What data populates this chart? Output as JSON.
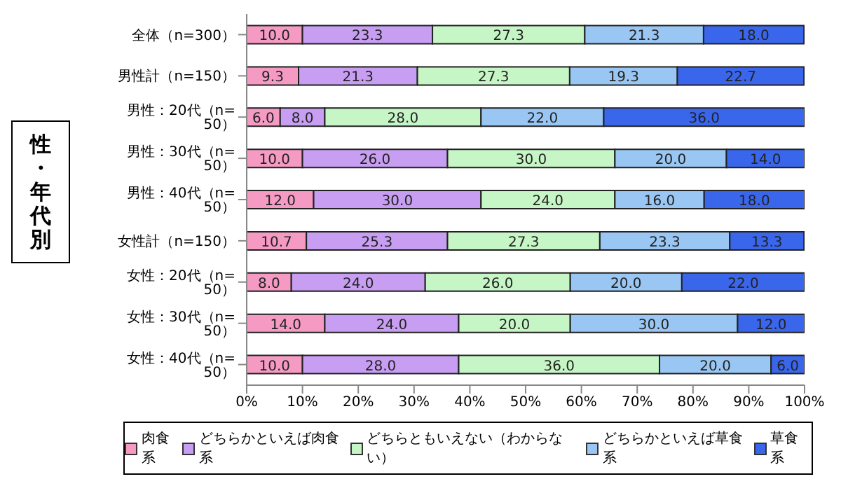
{
  "chart_data": {
    "type": "bar",
    "orientation": "horizontal",
    "stacked": true,
    "ylabel": "性・年代別",
    "categories": [
      "全体（n=300）",
      "男性計（n=150）",
      "男性：20代（n=  50）",
      "男性：30代（n=  50）",
      "男性：40代（n=  50）",
      "女性計（n=150）",
      "女性：20代（n=  50）",
      "女性：30代（n=  50）",
      "女性：40代（n=  50）"
    ],
    "series": [
      {
        "name": "肉食系",
        "color": "#f59bc3",
        "values": [
          10.0,
          9.3,
          6.0,
          10.0,
          12.0,
          10.7,
          8.0,
          14.0,
          10.0
        ],
        "value_labels": [
          "10.0",
          "9.3",
          "6.0",
          "10.0",
          "12.0",
          "10.7",
          "8.0",
          "14.0",
          "10.0"
        ]
      },
      {
        "name": "どちらかといえば肉食系",
        "color": "#c79ef2",
        "values": [
          23.3,
          21.3,
          8.0,
          26.0,
          30.0,
          25.3,
          24.0,
          24.0,
          28.0
        ],
        "value_labels": [
          "23.3",
          "21.3",
          "8.0",
          "26.0",
          "30.0",
          "25.3",
          "24.0",
          "24.0",
          "28.0"
        ]
      },
      {
        "name": "どちらともいえない（わからない）",
        "color": "#c6f5c6",
        "values": [
          27.3,
          27.3,
          28.0,
          30.0,
          24.0,
          27.3,
          26.0,
          20.0,
          36.0
        ],
        "value_labels": [
          "27.3",
          "27.3",
          "28.0",
          "30.0",
          "24.0",
          "27.3",
          "26.0",
          "20.0",
          "36.0"
        ]
      },
      {
        "name": "どちらかといえば草食系",
        "color": "#99c6f2",
        "values": [
          21.3,
          19.3,
          22.0,
          20.0,
          16.0,
          23.3,
          20.0,
          30.0,
          20.0
        ],
        "value_labels": [
          "21.3",
          "19.3",
          "22.0",
          "20.0",
          "16.0",
          "23.3",
          "20.0",
          "30.0",
          "20.0"
        ]
      },
      {
        "name": "草食系",
        "color": "#3a66ec",
        "values": [
          18.0,
          22.7,
          36.0,
          14.0,
          18.0,
          13.3,
          22.0,
          12.0,
          6.0
        ],
        "value_labels": [
          "18.0",
          "22.7",
          "36.0",
          "14.0",
          "18.0",
          "13.3",
          "22.0",
          "12.0",
          "6.0"
        ]
      }
    ],
    "xlim": [
      0,
      100
    ],
    "xticks": [
      {
        "value": 0,
        "label": "0%"
      },
      {
        "value": 10,
        "label": "10%"
      },
      {
        "value": 20,
        "label": "20%"
      },
      {
        "value": 30,
        "label": "30%"
      },
      {
        "value": 40,
        "label": "40%"
      },
      {
        "value": 50,
        "label": "50%"
      },
      {
        "value": 60,
        "label": "60%"
      },
      {
        "value": 70,
        "label": "70%"
      },
      {
        "value": 80,
        "label": "80%"
      },
      {
        "value": 90,
        "label": "90%"
      },
      {
        "value": 100,
        "label": "100%"
      }
    ],
    "legend": "bottom",
    "grid": false
  }
}
